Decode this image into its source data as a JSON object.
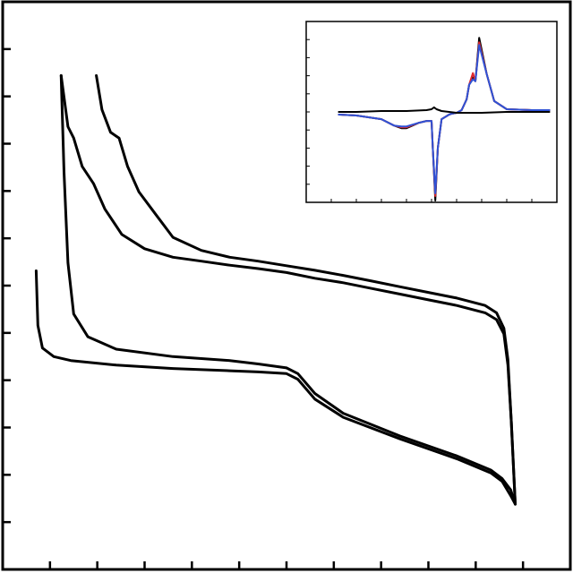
{
  "chart_data": [
    {
      "type": "line",
      "title": "",
      "xlabel": "",
      "ylabel": "",
      "x_range": [
        0,
        100
      ],
      "y_range": [
        0,
        100
      ],
      "grid": false,
      "legend": "none",
      "line_color": "#000000",
      "series": [
        {
          "x": [
            5.9,
            6.2,
            7,
            9,
            12,
            20,
            30,
            40,
            45,
            50,
            52,
            55,
            60,
            70,
            80,
            86,
            88,
            89.5,
            90.3
          ],
          "y": [
            52.6,
            43,
            39,
            37.5,
            36.8,
            36,
            35.4,
            35,
            34.8,
            34.5,
            33.5,
            30,
            26.8,
            23,
            19.5,
            17,
            15.5,
            13,
            11.5
          ]
        },
        {
          "x": [
            10.3,
            10.8,
            11.5,
            12.5,
            15,
            20,
            30,
            40,
            45,
            50,
            52,
            55,
            60,
            70,
            80,
            86,
            88,
            89.5,
            90.3
          ],
          "y": [
            87,
            70,
            54,
            45,
            41,
            38.8,
            37.5,
            36.8,
            36.2,
            35.5,
            34.5,
            31,
            27.5,
            23.5,
            20,
            17.5,
            16,
            14,
            11.5
          ]
        },
        {
          "x": [
            10.3,
            11.5,
            12.5,
            14,
            16,
            18,
            21,
            25,
            30,
            35,
            40,
            45,
            50,
            55,
            60,
            65,
            70,
            75,
            80,
            85,
            87,
            88.3,
            89,
            89.6,
            90.3
          ],
          "y": [
            87,
            78,
            76,
            71,
            68,
            63.5,
            59,
            56.5,
            55,
            54.3,
            53.6,
            53,
            52.3,
            51.3,
            50.5,
            49.5,
            48.5,
            47.5,
            46.5,
            45.2,
            44,
            41.5,
            36,
            26,
            11.5
          ]
        },
        {
          "x": [
            16.5,
            17.5,
            19,
            20.5,
            22,
            24,
            27,
            30,
            35,
            40,
            45,
            50,
            55,
            60,
            65,
            70,
            75,
            80,
            85,
            87,
            88.3,
            89,
            89.6,
            90.3
          ],
          "y": [
            87,
            81,
            77,
            76,
            71,
            66.5,
            62.5,
            58.5,
            56.2,
            55,
            54.3,
            53.5,
            52.7,
            51.8,
            50.8,
            49.8,
            48.8,
            47.8,
            46.5,
            45.2,
            42.5,
            37,
            26,
            11.5
          ]
        }
      ]
    },
    {
      "type": "line",
      "title": "",
      "xlabel": "",
      "ylabel": "",
      "x_range": [
        0,
        100
      ],
      "y_range": [
        -100,
        100
      ],
      "grid": false,
      "legend": "none",
      "colors": [
        "#000000",
        "#e0282e",
        "#2f52d6"
      ],
      "series": [
        {
          "x": [
            13,
            20,
            30,
            35,
            38,
            40,
            45,
            48,
            50,
            50.5,
            51.5,
            52.5,
            54,
            57,
            58,
            60,
            62,
            64,
            65,
            66.5,
            67.5,
            69,
            72,
            75,
            80,
            90,
            97
          ],
          "y": [
            -3,
            -4,
            -8,
            -15,
            -18,
            -18,
            -12,
            -10,
            -10,
            -40,
            -98,
            -40,
            -8,
            -3,
            -2,
            -1,
            2,
            14,
            30,
            38,
            34,
            82,
            42,
            12,
            3,
            2,
            2
          ]
        },
        {
          "x": [
            13,
            20,
            30,
            35,
            38,
            40,
            45,
            48,
            50,
            50.5,
            51.5,
            52.5,
            54,
            57,
            58,
            60,
            62,
            64,
            65,
            66.5,
            67.5,
            69,
            72,
            75,
            80,
            90,
            97
          ],
          "y": [
            -3,
            -4,
            -8,
            -15,
            -17,
            -17,
            -12,
            -10,
            -10,
            -40,
            -93,
            -40,
            -8,
            -3,
            -2,
            -1,
            2,
            14,
            30,
            43,
            34,
            77,
            42,
            12,
            3,
            2,
            2
          ]
        },
        {
          "x": [
            13,
            20,
            30,
            35,
            38,
            40,
            45,
            48,
            50,
            50.5,
            51.5,
            52.5,
            54,
            57,
            58,
            60,
            62,
            64,
            65,
            66.5,
            67.5,
            69,
            72,
            75,
            80,
            90,
            97
          ],
          "y": [
            -3,
            -4,
            -8,
            -15,
            -16,
            -16,
            -12,
            -10,
            -10,
            -40,
            -90,
            -40,
            -8,
            -3,
            -2,
            -1,
            2,
            14,
            30,
            36,
            34,
            74,
            42,
            12,
            3,
            2,
            2
          ]
        },
        {
          "x": [
            13,
            20,
            30,
            40,
            48,
            50,
            51,
            52,
            54,
            60,
            70,
            80,
            90,
            97
          ],
          "y": [
            0,
            0,
            1,
            1,
            2,
            3,
            5,
            3,
            1,
            -1,
            -1,
            0,
            0,
            0
          ]
        }
      ]
    }
  ]
}
